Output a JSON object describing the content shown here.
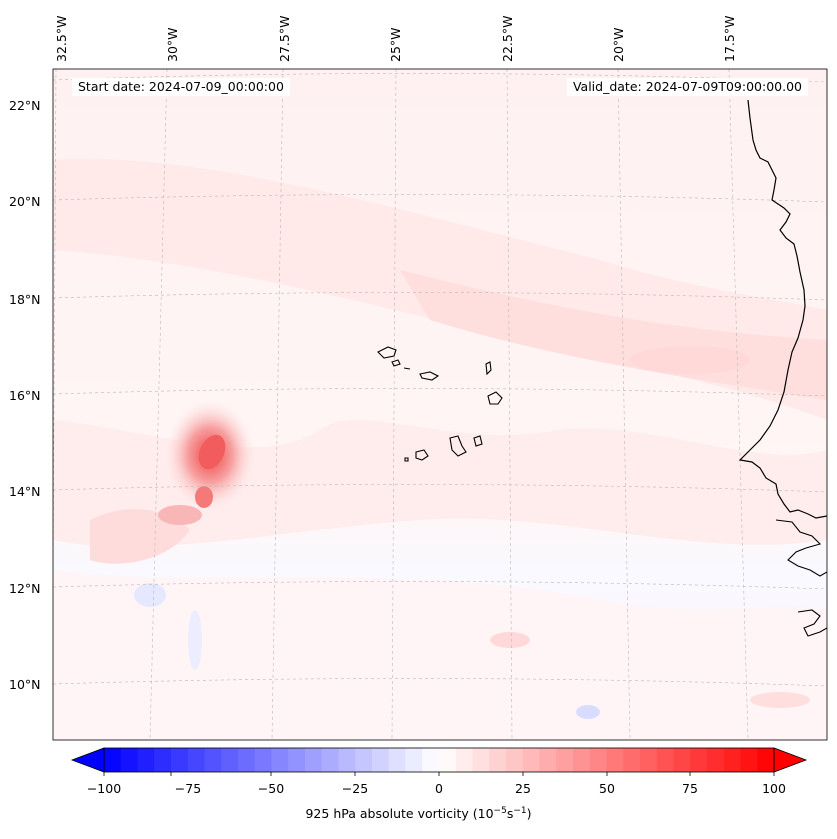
{
  "map": {
    "start_date": "Start date: 2024-07-09_00:00:00",
    "valid_date": "Valid_date: 2024-07-09T09:00:00.00",
    "lon_labels": [
      "32.5°W",
      "30°W",
      "27.5°W",
      "25°W",
      "22.5°W",
      "20°W",
      "17.5°W"
    ],
    "lat_labels": [
      "22°N",
      "20°N",
      "18°N",
      "16°N",
      "14°N",
      "12°N",
      "10°N"
    ],
    "coastline_color": "#000000",
    "gridline_color": "#b8b8b8"
  },
  "colorbar": {
    "ticks": [
      "−100",
      "−75",
      "−50",
      "−25",
      "0",
      "25",
      "50",
      "75",
      "100"
    ],
    "label_prefix": "925 hPa absolute vorticity (10",
    "label_exp1": "−5",
    "label_mid": "s",
    "label_exp2": "−1",
    "label_suffix": ")",
    "min_color": "#0000ff",
    "mid_color": "#ffffff",
    "max_color": "#ff0000"
  },
  "features": [
    {
      "name": "vorticity-max-near-15N-29W",
      "color": "#f05a5a"
    },
    {
      "name": "vorticity-band-east",
      "color": "#ffd6d6"
    }
  ]
}
